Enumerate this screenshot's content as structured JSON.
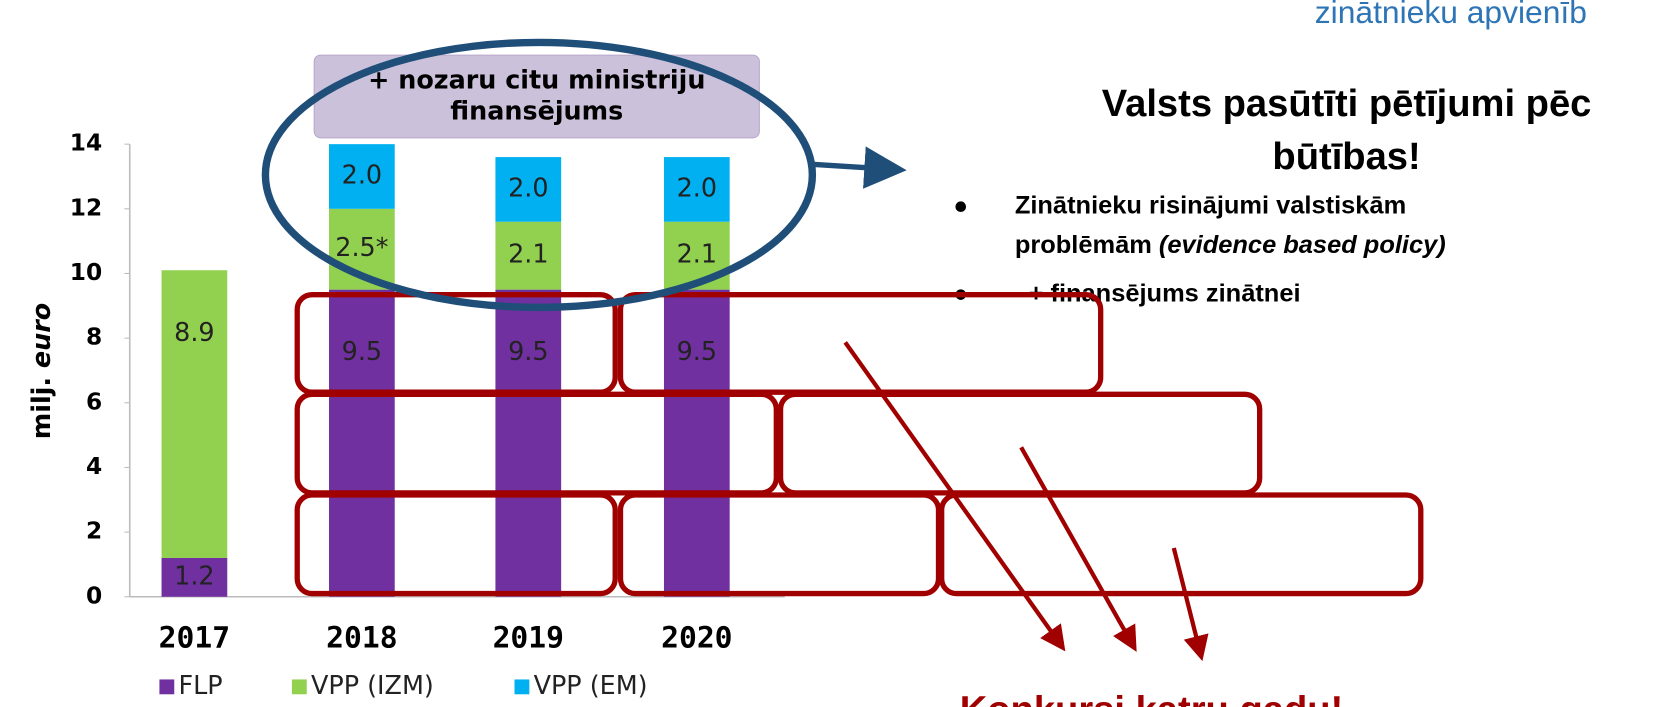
{
  "chart_data": {
    "type": "stacked_bar",
    "categories": [
      "2017",
      "2018",
      "2019",
      "2020"
    ],
    "series": [
      {
        "name": "FLP",
        "color": "#7030a0",
        "values": [
          1.2,
          9.5,
          9.5,
          9.5
        ]
      },
      {
        "name": "VPP (IZM)",
        "color": "#92d050",
        "values": [
          8.9,
          2.5,
          2.1,
          2.1
        ],
        "value_labels": [
          "8.9",
          "2.5*",
          "2.1",
          "2.1"
        ]
      },
      {
        "name": "VPP (EM)",
        "color": "#00b0f0",
        "values": [
          null,
          2.0,
          2.0,
          2.0
        ],
        "value_labels": [
          null,
          "2.0",
          "2.0",
          "2.0"
        ]
      }
    ],
    "y_label": {
      "text": "milj.",
      "italic": "euro"
    },
    "ylim": [
      0,
      14
    ],
    "yticks": [
      0,
      2,
      4,
      6,
      8,
      10,
      12,
      14
    ],
    "grid": false,
    "legend": "bottom"
  },
  "header": {
    "org": "zinātnieku apvienīb"
  },
  "callout": {
    "lines": [
      "+ nozaru citu ministriju",
      "finansējums"
    ]
  },
  "panel": {
    "title_lines": [
      "Valsts pasūtīti pētījumi pēc",
      "būtības!"
    ],
    "bullets": [
      {
        "lines": [
          "Zinātnieku risinājumi valstiskām",
          "problēmām"
        ],
        "italic": "(evidence based policy)"
      },
      {
        "lines": [
          "+ finansējums zinātnei"
        ]
      }
    ]
  },
  "footer": {
    "text": "Konkursi katru gadu!"
  }
}
